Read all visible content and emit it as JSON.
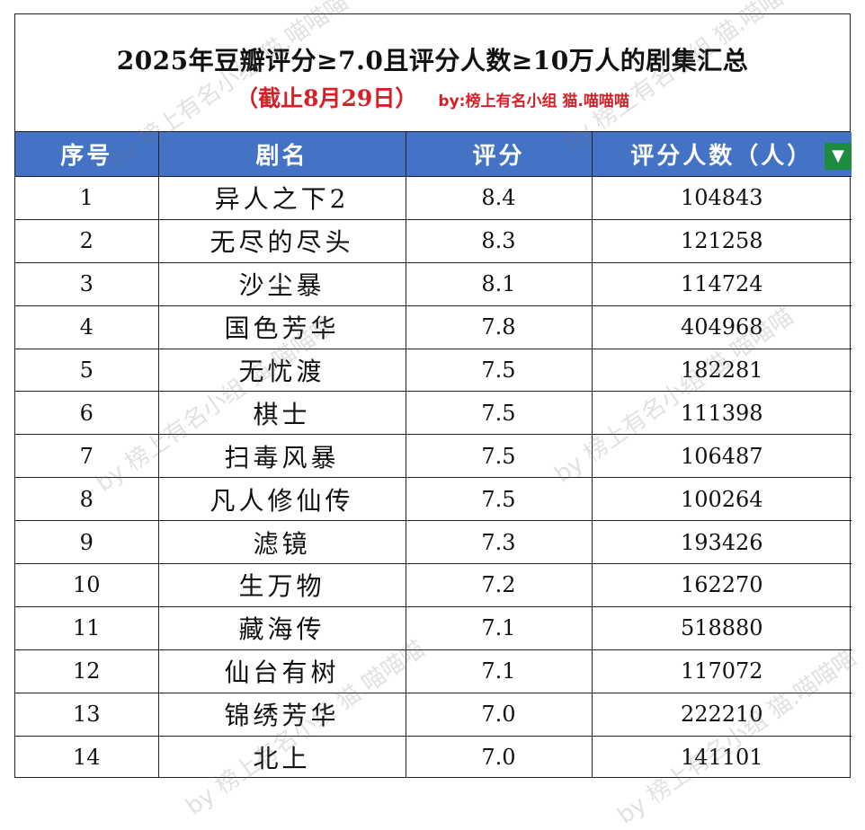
{
  "title": "2025年豆瓣评分≥7.0且评分人数≥10万人的剧集汇总",
  "date_note": "（截止8月29日）",
  "byline": "by:榜上有名小组 猫.喵喵喵",
  "headers": {
    "index": "序号",
    "name": "剧名",
    "score": "评分",
    "votes": "评分人数（人）"
  },
  "filter_icon": "filter-icon",
  "rows": [
    {
      "index": "1",
      "name": "异人之下2",
      "score": "8.4",
      "votes": "104843"
    },
    {
      "index": "2",
      "name": "无尽的尽头",
      "score": "8.3",
      "votes": "121258"
    },
    {
      "index": "3",
      "name": "沙尘暴",
      "score": "8.1",
      "votes": "114724"
    },
    {
      "index": "4",
      "name": "国色芳华",
      "score": "7.8",
      "votes": "404968"
    },
    {
      "index": "5",
      "name": "无忧渡",
      "score": "7.5",
      "votes": "182281"
    },
    {
      "index": "6",
      "name": "棋士",
      "score": "7.5",
      "votes": "111398"
    },
    {
      "index": "7",
      "name": "扫毒风暴",
      "score": "7.5",
      "votes": "106487"
    },
    {
      "index": "8",
      "name": "凡人修仙传",
      "score": "7.5",
      "votes": "100264"
    },
    {
      "index": "9",
      "name": "滤镜",
      "score": "7.3",
      "votes": "193426"
    },
    {
      "index": "10",
      "name": "生万物",
      "score": "7.2",
      "votes": "162270"
    },
    {
      "index": "11",
      "name": "藏海传",
      "score": "7.1",
      "votes": "518880"
    },
    {
      "index": "12",
      "name": "仙台有树",
      "score": "7.1",
      "votes": "117072"
    },
    {
      "index": "13",
      "name": "锦绣芳华",
      "score": "7.0",
      "votes": "222210"
    },
    {
      "index": "14",
      "name": "北上",
      "score": "7.0",
      "votes": "141101"
    }
  ],
  "watermark": "by 榜上有名小组 猫.喵喵喵"
}
